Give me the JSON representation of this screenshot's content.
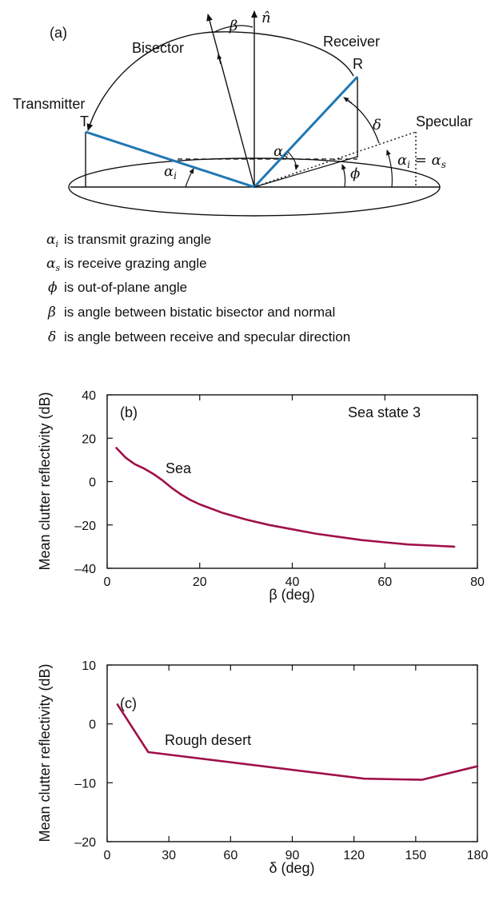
{
  "diagram": {
    "panel_label": "(a)",
    "beta": "β",
    "normal": "n̂",
    "bisector": "Bisector",
    "receiver": "Receiver",
    "receiver_letter": "R",
    "transmitter": "Transmitter",
    "transmitter_letter": "T",
    "delta": "δ",
    "specular": "Specular",
    "alpha_s": "αs",
    "alpha_i": "αi",
    "phi": "ϕ",
    "alpha_eq": "αi = αs",
    "colors": {
      "path": "#1f77b4",
      "line": "#111111"
    }
  },
  "legend": [
    {
      "symbol": "αi",
      "text": "is transmit grazing angle"
    },
    {
      "symbol": "αs",
      "text": "is receive grazing angle"
    },
    {
      "symbol": "ϕ",
      "text": "is out-of-plane angle"
    },
    {
      "symbol": "β",
      "text": "is angle between bistatic bisector and normal"
    },
    {
      "symbol": "δ",
      "text": "is angle between receive and specular direction"
    }
  ],
  "chart_data": [
    {
      "type": "line",
      "panel_label": "(b)",
      "annotation": "Sea state 3",
      "series": [
        {
          "name": "Sea",
          "color": "#a0104a",
          "x": [
            2,
            4,
            6,
            8,
            10,
            12,
            14,
            16,
            18,
            20,
            25,
            30,
            35,
            40,
            45,
            50,
            55,
            60,
            65,
            70,
            75
          ],
          "y": [
            15.5,
            11,
            8,
            6,
            3.5,
            0.5,
            -3,
            -6,
            -8.5,
            -10.5,
            -14.5,
            -17.5,
            -20,
            -22,
            -24,
            -25.5,
            -27,
            -28,
            -29,
            -29.5,
            -30
          ]
        }
      ],
      "xlabel": "β (deg)",
      "ylabel": "Mean clutter reflectivity (dB)",
      "xlim": [
        0,
        80
      ],
      "ylim": [
        -40,
        40
      ],
      "xticks": [
        0,
        20,
        40,
        60,
        80
      ],
      "yticks": [
        -40,
        -20,
        0,
        20,
        40
      ],
      "xtick_labels": [
        "0",
        "20",
        "40",
        "60",
        "80"
      ],
      "ytick_labels": [
        "–40",
        "–20",
        "0",
        "20",
        "40"
      ]
    },
    {
      "type": "line",
      "panel_label": "(c)",
      "series": [
        {
          "name": "Rough desert",
          "color": "#a0104a",
          "x": [
            5,
            20,
            125,
            153,
            180
          ],
          "y": [
            3.3,
            -4.8,
            -9.3,
            -9.5,
            -7.2
          ]
        }
      ],
      "xlabel": "δ (deg)",
      "ylabel": "Mean clutter reflectivity (dB)",
      "xlim": [
        0,
        180
      ],
      "ylim": [
        -20,
        10
      ],
      "xticks": [
        0,
        30,
        60,
        90,
        120,
        150,
        180
      ],
      "yticks": [
        -20,
        -10,
        0,
        10
      ],
      "xtick_labels": [
        "0",
        "30",
        "60",
        "90",
        "120",
        "150",
        "180"
      ],
      "ytick_labels": [
        "–20",
        "–10",
        "0",
        "10"
      ]
    }
  ]
}
